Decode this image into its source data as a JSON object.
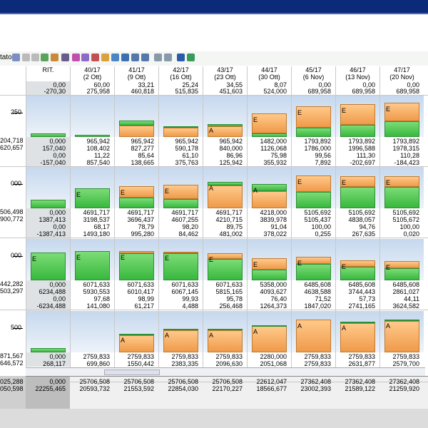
{
  "toolbar": {
    "label": "tato"
  },
  "header": {
    "columns": [
      {
        "line1": "RIT.",
        "line2": ""
      },
      {
        "line1": "40/17",
        "line2": "(2 Ott)"
      },
      {
        "line1": "41/17",
        "line2": "(9 Ott)"
      },
      {
        "line1": "42/17",
        "line2": "(16 Ott)"
      },
      {
        "line1": "43/17",
        "line2": "(23 Ott)"
      },
      {
        "line1": "44/17",
        "line2": "(30 Ott)"
      },
      {
        "line1": "45/17",
        "line2": "(6 Nov)"
      },
      {
        "line1": "46/17",
        "line2": "(13 Nov)"
      },
      {
        "line1": "47/17",
        "line2": "(20 Nov)"
      }
    ]
  },
  "top_row": {
    "line1": [
      "0,00",
      "60,00",
      "33,21",
      "25,24",
      "34,55",
      "8,07",
      "0,00",
      "0,00",
      "0,00"
    ],
    "line2": [
      "-270,30",
      "275,958",
      "460,818",
      "515,835",
      "451,603",
      "524,000",
      "689,958",
      "689,958",
      "689,958"
    ]
  },
  "groups": [
    {
      "left_axis": "250",
      "left_vals": [
        "204,718",
        "620,657"
      ],
      "bars": [
        {
          "orange": 0,
          "green": 0.08,
          "letter": ""
        },
        {
          "orange": 0,
          "green": 0.06,
          "letter": ""
        },
        {
          "orange": 0.28,
          "green": 0.12,
          "letter": ""
        },
        {
          "orange": 0.22,
          "green": 0.04,
          "letter": ""
        },
        {
          "orange": 0.26,
          "green": 0.06,
          "letter": "A"
        },
        {
          "orange": 0.48,
          "green": 0.08,
          "letter": "E"
        },
        {
          "orange": 0.52,
          "green": 0.22,
          "letter": "E"
        },
        {
          "orange": 0.5,
          "green": 0.3,
          "letter": "E"
        },
        {
          "orange": 0.45,
          "green": 0.38,
          "letter": "E"
        }
      ],
      "rows": [
        [
          "0,000",
          "965,942",
          "965,942",
          "965,942",
          "965,942",
          "1482,000",
          "1793,892",
          "1793,892",
          "1793,892"
        ],
        [
          "157,040",
          "108,402",
          "827,277",
          "590,178",
          "840,000",
          "1126,068",
          "1786,000",
          "1996,588",
          "1978,315"
        ],
        [
          "0,00",
          "11,22",
          "85,64",
          "61,10",
          "86,96",
          "75,98",
          "99,56",
          "111,30",
          "110,28"
        ],
        [
          "-157,040",
          "857,540",
          "138,665",
          "375,763",
          "125,942",
          "355,932",
          "7,892",
          "-202,697",
          "-184,423"
        ]
      ]
    },
    {
      "left_axis": "000",
      "left_vals": [
        "506,498",
        "900,772"
      ],
      "bars": [
        {
          "orange": 0,
          "green": 0.2,
          "letter": ""
        },
        {
          "orange": 0,
          "green": 0.48,
          "letter": "E"
        },
        {
          "orange": 0.28,
          "green": 0.26,
          "letter": "E"
        },
        {
          "orange": 0.34,
          "green": 0.22,
          "letter": "E"
        },
        {
          "orange": 0.56,
          "green": 0.08,
          "letter": "A"
        },
        {
          "orange": 0.42,
          "green": 0.18,
          "letter": "A"
        },
        {
          "orange": 0.4,
          "green": 0.4,
          "letter": "E"
        },
        {
          "orange": 0.26,
          "green": 0.52,
          "letter": "E"
        },
        {
          "orange": 0.26,
          "green": 0.52,
          "letter": "E"
        }
      ],
      "rows": [
        [
          "0,000",
          "4691,717",
          "4691,717",
          "4691,717",
          "4691,717",
          "4218,000",
          "5105,692",
          "5105,692",
          "5105,692"
        ],
        [
          "1387,413",
          "3198,537",
          "3696,437",
          "4607,255",
          "4210,715",
          "3839,978",
          "5105,437",
          "4838,057",
          "5105,672"
        ],
        [
          "0,00",
          "68,17",
          "78,79",
          "98,20",
          "89,75",
          "91,04",
          "100,00",
          "94,76",
          "100,00"
        ],
        [
          "-1387,413",
          "1493,180",
          "995,280",
          "84,462",
          "481,002",
          "378,022",
          "0,255",
          "267,635",
          "0,020"
        ]
      ]
    },
    {
      "left_axis": "000",
      "left_vals": [
        "442,282",
        "503,297"
      ],
      "bars": [
        {
          "orange": 0,
          "green": 0.68,
          "letter": "E"
        },
        {
          "orange": 0,
          "green": 0.7,
          "letter": "E"
        },
        {
          "orange": 0.06,
          "green": 0.66,
          "letter": "E"
        },
        {
          "orange": 0.04,
          "green": 0.66,
          "letter": "E"
        },
        {
          "orange": 0.14,
          "green": 0.52,
          "letter": "E"
        },
        {
          "orange": 0.28,
          "green": 0.26,
          "letter": "E"
        },
        {
          "orange": 0.18,
          "green": 0.4,
          "letter": "E"
        },
        {
          "orange": 0.16,
          "green": 0.32,
          "letter": "E"
        },
        {
          "orange": 0.18,
          "green": 0.3,
          "letter": "E"
        }
      ],
      "rows": [
        [
          "0,000",
          "6071,633",
          "6071,633",
          "6071,633",
          "6071,633",
          "5358,000",
          "6485,608",
          "6485,608",
          "6485,608"
        ],
        [
          "6234,488",
          "5930,553",
          "6010,417",
          "6067,145",
          "5815,165",
          "4093,627",
          "4638,588",
          "3744,443",
          "2861,027"
        ],
        [
          "0,00",
          "97,68",
          "98,99",
          "99,93",
          "95,78",
          "76,40",
          "71,52",
          "57,73",
          "44,11"
        ],
        [
          "-6234,488",
          "141,080",
          "61,217",
          "4,488",
          "256,468",
          "1264,373",
          "1847,020",
          "2741,165",
          "3624,582"
        ]
      ]
    },
    {
      "left_axis": "500",
      "left_vals": [
        "871,567",
        "646,572"
      ],
      "bars": [
        {
          "orange": 0,
          "green": 0.1,
          "letter": ""
        },
        {
          "orange": 0,
          "green": 0.0,
          "letter": ""
        },
        {
          "orange": 0.42,
          "green": 0.04,
          "letter": "A"
        },
        {
          "orange": 0.54,
          "green": 0.04,
          "letter": "A"
        },
        {
          "orange": 0.54,
          "green": 0.04,
          "letter": "A"
        },
        {
          "orange": 0.64,
          "green": 0.02,
          "letter": "A"
        },
        {
          "orange": 0.8,
          "green": 0.0,
          "letter": "A"
        },
        {
          "orange": 0.7,
          "green": 0.04,
          "letter": "A"
        },
        {
          "orange": 0.76,
          "green": 0.04,
          "letter": "A"
        }
      ],
      "rows": [
        [
          "0,000",
          "2759,833",
          "2759,833",
          "2759,833",
          "2759,833",
          "2280,000",
          "2759,833",
          "2759,833",
          "2759,833"
        ],
        [
          "268,117",
          "699,860",
          "1550,442",
          "2383,335",
          "2096,630",
          "2051,068",
          "2759,833",
          "2631,877",
          "2579,700"
        ]
      ]
    }
  ],
  "footer": {
    "left": [
      "025,288",
      "050,598"
    ],
    "line1": [
      "0,000",
      "25706,508",
      "25706,508",
      "25706,508",
      "25706,508",
      "22612,047",
      "27362,408",
      "27362,408",
      "27362,408"
    ],
    "line2": [
      "22255,465",
      "20593,732",
      "21553,592",
      "22854,030",
      "22170,227",
      "18566,677",
      "23002,393",
      "21589,122",
      "21259,920"
    ]
  }
}
